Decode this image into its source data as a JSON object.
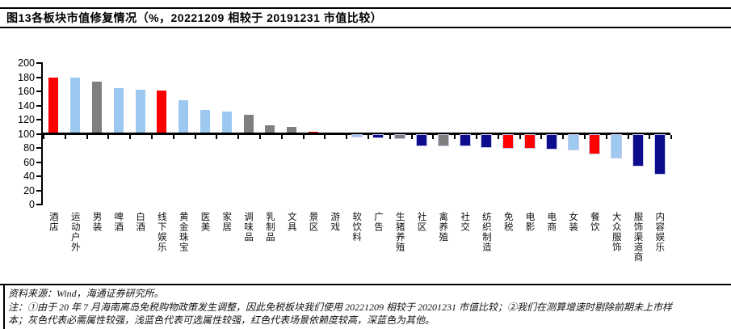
{
  "title": "图13各板块市值修复情况（%，20221209 相较于 20191231 市值比较）",
  "chart_data": {
    "type": "bar",
    "title": "图13各板块市值修复情况（%，20221209 相较于 20191231 市值比较）",
    "xlabel": "",
    "ylabel": "",
    "unit": "%",
    "baseline": 100,
    "ylim": [
      0,
      200
    ],
    "ytick_step": 20,
    "ytick_labels": [
      "0",
      "20",
      "40",
      "60",
      "80",
      "100",
      "120",
      "140",
      "160",
      "180",
      "200"
    ],
    "grid": false,
    "legend_position": "none",
    "categories": [
      "酒店",
      "运动户外",
      "男装",
      "啤酒",
      "白酒",
      "线下娱乐",
      "黄金珠宝",
      "医美",
      "家居",
      "调味品",
      "乳制品",
      "文具",
      "景区",
      "游戏",
      "软饮料",
      "广告",
      "生猪养殖",
      "社区",
      "禽养殖",
      "社交",
      "纺织制造",
      "免税",
      "电影",
      "电商",
      "女装",
      "餐饮",
      "大众服饰",
      "服饰渠道商",
      "内容娱乐"
    ],
    "values": [
      180,
      179,
      174,
      165,
      162,
      161,
      147,
      134,
      131,
      127,
      112,
      110,
      103,
      100,
      96,
      95,
      94,
      84,
      84,
      83,
      81,
      80,
      80,
      79,
      78,
      72,
      66,
      55,
      44
    ],
    "bar_colors": [
      "red",
      "light_blue",
      "gray",
      "light_blue",
      "light_blue",
      "red",
      "light_blue",
      "light_blue",
      "light_blue",
      "gray",
      "gray",
      "gray",
      "red",
      "gray",
      "light_blue",
      "navy",
      "gray",
      "navy",
      "gray",
      "navy",
      "navy",
      "red",
      "red",
      "navy",
      "light_blue",
      "red",
      "light_blue",
      "navy",
      "navy"
    ],
    "palette": {
      "red": "#FF0000",
      "light_blue": "#9DC9F0",
      "gray": "#7F7F7F",
      "navy": "#0C0C8C"
    },
    "color_meaning": {
      "gray": "必需属性较强",
      "light_blue": "可选属性较强",
      "red": "场景依赖度较高",
      "navy": "其他"
    }
  },
  "footer": {
    "source": "资料来源：Wind，海通证券研究所。",
    "note_line1": "注：①由于 20 年 7 月海南离岛免税购物政策发生调整，因此免税板块我们使用 20221209 相较于 20201231 市值比较；②我们在测算增速时剔除前期未上市样",
    "note_line2": "本；灰色代表必需属性较强，浅蓝色代表可选属性较强，红色代表场景依赖度较高，深蓝色为其他。"
  }
}
